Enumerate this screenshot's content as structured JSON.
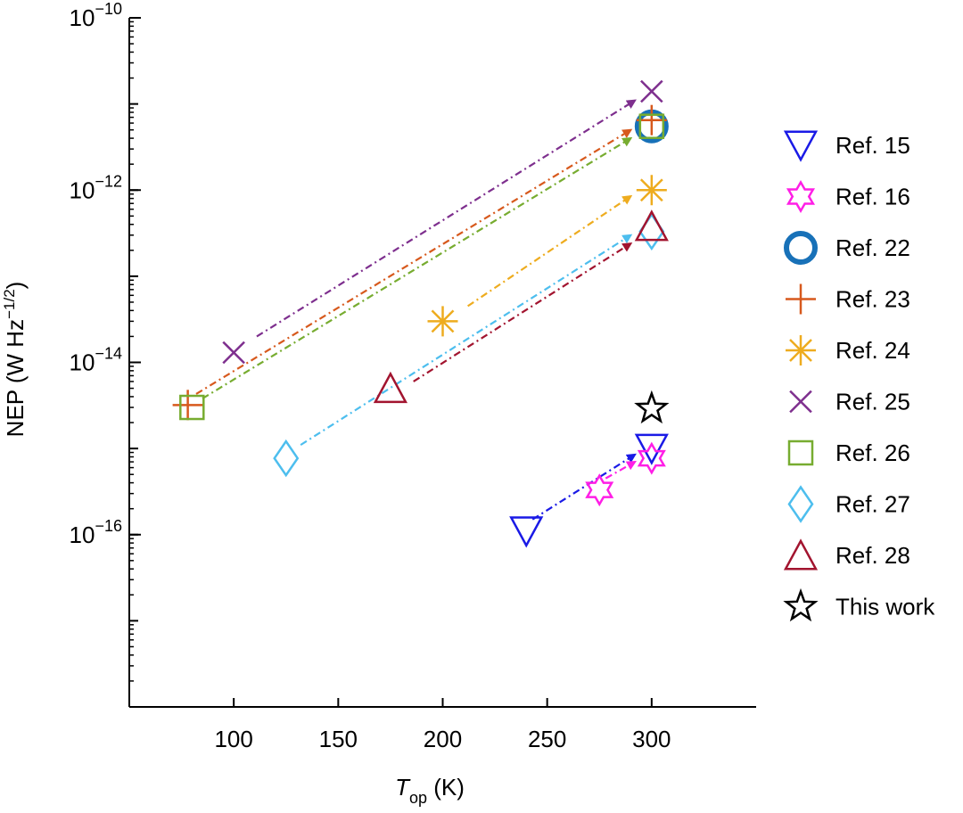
{
  "chart_data": {
    "type": "scatter",
    "title": "",
    "x_axis": {
      "label_main": "T",
      "label_sub": "op",
      "label_unit": " (K)",
      "range": [
        50,
        350
      ],
      "ticks": [
        100,
        150,
        200,
        250,
        300
      ],
      "tick_labels": [
        "100",
        "150",
        "200",
        "250",
        "300"
      ]
    },
    "y_axis": {
      "label": "NEP (W Hz",
      "label_sup": "−1/2",
      "label_close": ")",
      "scale": "log",
      "range": [
        1e-18,
        1e-10
      ],
      "major_ticks": [
        1e-16,
        1e-14,
        1e-12,
        1e-10
      ],
      "tick_base": "10",
      "tick_exponents": [
        "−16",
        "−14",
        "−12",
        "−10"
      ]
    },
    "grid": false,
    "legend_placement": "right",
    "series": [
      {
        "name": "Ref. 15",
        "marker": "triangle-down",
        "color": "#1a1ae6",
        "points": [
          [
            240,
            1.1e-16
          ],
          [
            300,
            1e-15
          ]
        ],
        "arrow": {
          "from": [
            243,
            1.5e-16
          ],
          "to": [
            292,
            8.5e-16
          ],
          "color": "#1a1ae6"
        }
      },
      {
        "name": "Ref. 16",
        "marker": "hexagram",
        "color": "#ff1ee6",
        "points": [
          [
            275,
            3.3e-16
          ],
          [
            300,
            7.7e-16
          ]
        ],
        "arrow": {
          "from": [
            278,
            4.5e-16
          ],
          "to": [
            292,
            7e-16
          ],
          "color": "#ff1ee6"
        }
      },
      {
        "name": "Ref. 22",
        "marker": "circle",
        "color": "#1871b8",
        "points": [
          [
            300,
            5.5e-12
          ]
        ],
        "arrow": null
      },
      {
        "name": "Ref. 23",
        "marker": "plus",
        "color": "#d7591d",
        "points": [
          [
            78,
            3.2e-15
          ],
          [
            300,
            6.5e-12
          ]
        ],
        "arrow": {
          "from": [
            82,
            4.3e-15
          ],
          "to": [
            290,
            5e-12
          ],
          "color": "#d7591d"
        }
      },
      {
        "name": "Ref. 24",
        "marker": "asterisk",
        "color": "#eeac1f",
        "points": [
          [
            200,
            3e-14
          ],
          [
            300,
            1e-12
          ]
        ],
        "arrow": {
          "from": [
            212,
            4.5e-14
          ],
          "to": [
            290,
            8.5e-13
          ],
          "color": "#eeac1f"
        }
      },
      {
        "name": "Ref. 25",
        "marker": "x",
        "color": "#7e2f8e",
        "points": [
          [
            100,
            1.3e-14
          ],
          [
            300,
            1.4e-11
          ]
        ],
        "arrow": {
          "from": [
            111,
            2e-14
          ],
          "to": [
            292,
            1.1e-11
          ],
          "color": "#7e2f8e"
        }
      },
      {
        "name": "Ref. 26",
        "marker": "square",
        "color": "#77ac30",
        "points": [
          [
            80,
            3e-15
          ],
          [
            300,
            5.5e-12
          ]
        ],
        "arrow": {
          "from": [
            85,
            3.8e-15
          ],
          "to": [
            290,
            4e-12
          ],
          "color": "#77ac30"
        }
      },
      {
        "name": "Ref. 27",
        "marker": "diamond",
        "color": "#4dbeee",
        "points": [
          [
            125,
            7.7e-16
          ],
          [
            300,
            3.3e-13
          ]
        ],
        "arrow": {
          "from": [
            132,
            1.1e-15
          ],
          "to": [
            290,
            3e-13
          ],
          "color": "#4dbeee"
        }
      },
      {
        "name": "Ref. 28",
        "marker": "triangle-up",
        "color": "#a2142f",
        "points": [
          [
            175,
            5e-15
          ],
          [
            300,
            3.8e-13
          ]
        ],
        "arrow": {
          "from": [
            186,
            6e-15
          ],
          "to": [
            290,
            2.4e-13
          ],
          "color": "#a2142f"
        }
      },
      {
        "name": "This work",
        "marker": "star",
        "color": "#000000",
        "points": [
          [
            300,
            2.9e-15
          ]
        ],
        "arrow": null
      }
    ]
  }
}
